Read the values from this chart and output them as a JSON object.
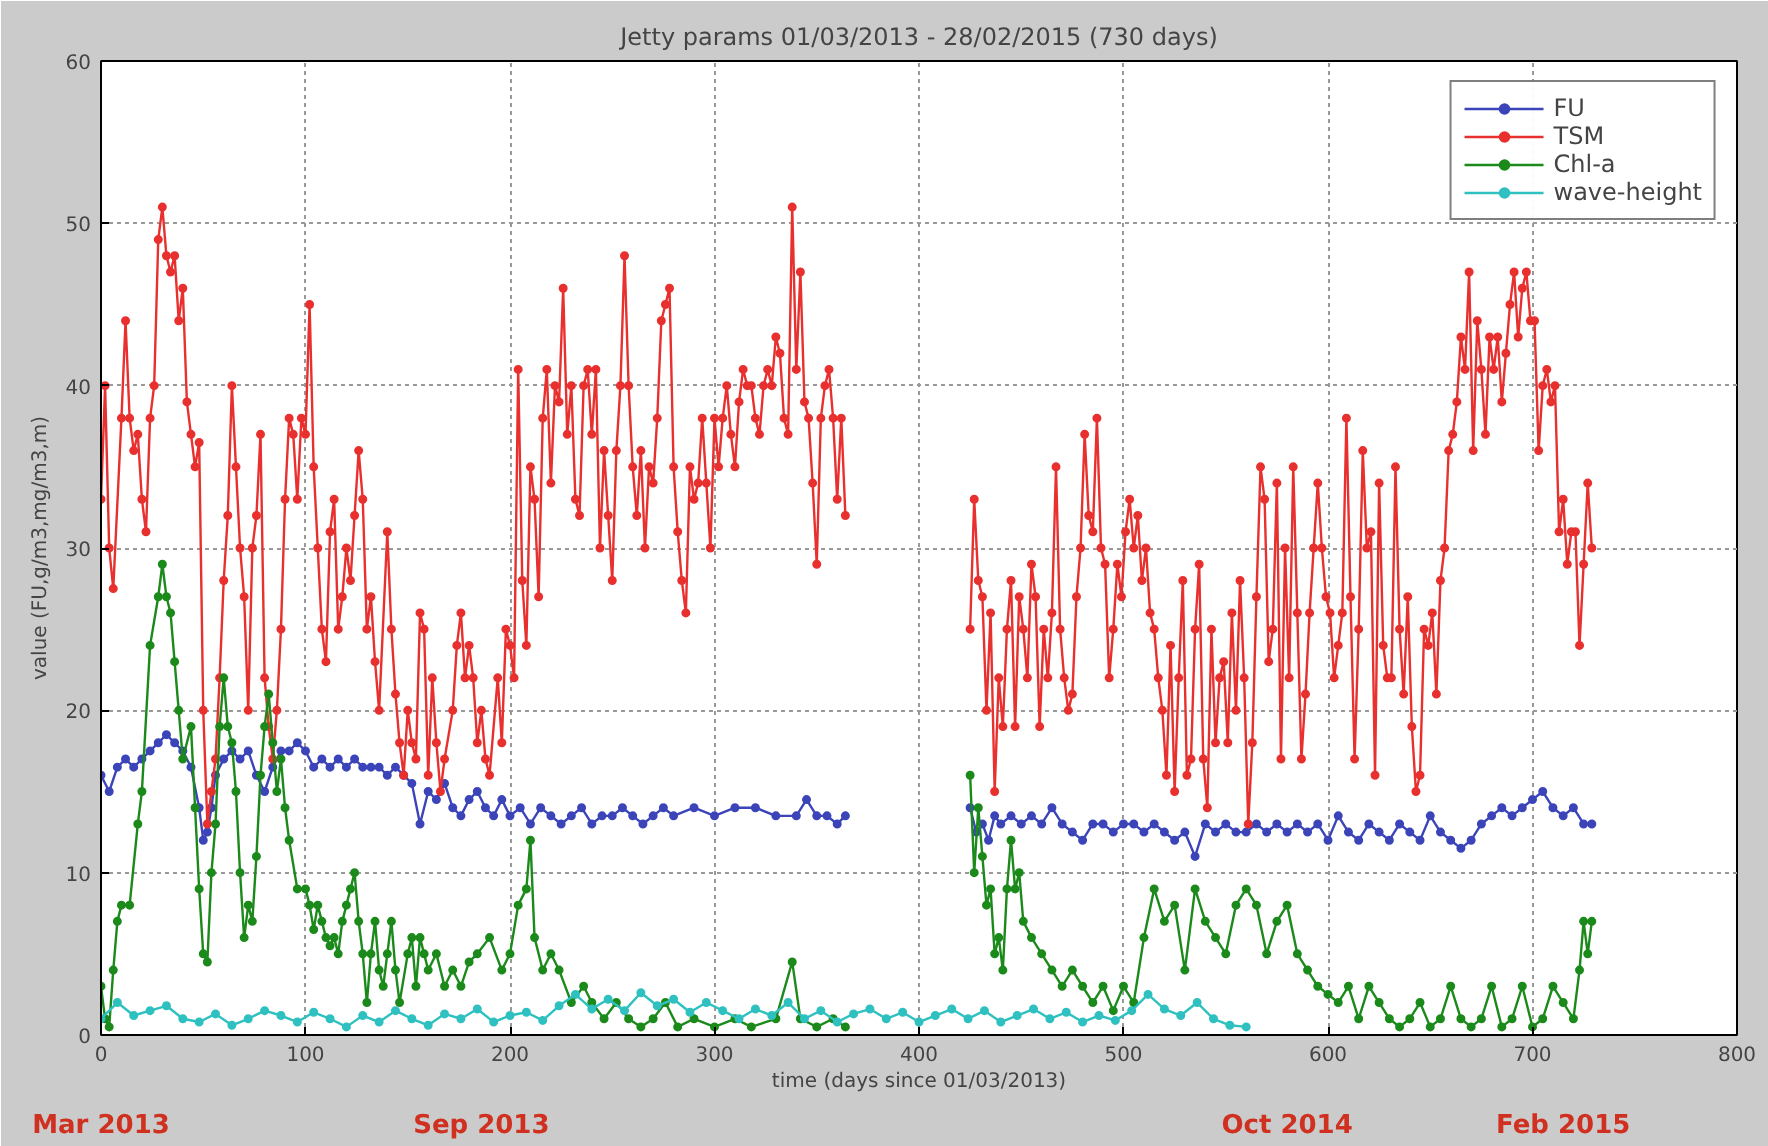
{
  "chart_data": {
    "type": "line",
    "title": "Jetty params 01/03/2013 - 28/02/2015 (730 days)",
    "xlabel": "time (days since 01/03/2013)",
    "ylabel": "value (FU,g/m3,mg/m3,m)",
    "xlim": [
      0,
      800
    ],
    "ylim": [
      0,
      60
    ],
    "xticks": [
      0,
      100,
      200,
      300,
      400,
      500,
      600,
      700,
      800
    ],
    "yticks": [
      0,
      10,
      20,
      30,
      40,
      50,
      60
    ],
    "grid": true,
    "legend": "top right",
    "marker": "circle",
    "line_style": "solid",
    "x2lim": [
      "2013-03-01",
      "2015-05-10"
    ],
    "x2ticks": [
      {
        "value": "2013-03-01",
        "label": "Mar 2013"
      },
      {
        "value": "2013-09-03",
        "label": "Sep 2013"
      },
      {
        "value": "2014-10-02",
        "label": "Oct 2014"
      },
      {
        "value": "2015-02-14",
        "label": "Feb 2015"
      }
    ],
    "series": [
      {
        "name": "FU",
        "color": "#3b44b8",
        "x": [
          0,
          4,
          8,
          12,
          16,
          20,
          24,
          28,
          32,
          36,
          40,
          44,
          48,
          50,
          52,
          54,
          56,
          60,
          64,
          68,
          72,
          76,
          80,
          84,
          88,
          92,
          96,
          100,
          104,
          108,
          112,
          116,
          120,
          124,
          128,
          132,
          136,
          140,
          144,
          148,
          152,
          156,
          160,
          164,
          168,
          172,
          176,
          180,
          184,
          188,
          192,
          196,
          200,
          205,
          210,
          215,
          220,
          225,
          230,
          235,
          240,
          245,
          250,
          255,
          260,
          265,
          270,
          275,
          280,
          290,
          300,
          310,
          320,
          330,
          340,
          345,
          350,
          355,
          360,
          364,
          395,
          425,
          428,
          431,
          434,
          437,
          440,
          445,
          450,
          455,
          460,
          465,
          470,
          475,
          480,
          485,
          490,
          495,
          500,
          505,
          510,
          515,
          520,
          525,
          530,
          535,
          540,
          545,
          550,
          555,
          560,
          565,
          570,
          575,
          580,
          585,
          590,
          595,
          600,
          605,
          610,
          615,
          620,
          625,
          630,
          635,
          640,
          645,
          650,
          655,
          660,
          665,
          670,
          675,
          680,
          685,
          690,
          695,
          700,
          705,
          710,
          715,
          720,
          725,
          729
        ],
        "values": [
          16,
          15,
          16.5,
          17,
          16.5,
          17,
          17.5,
          18,
          18.5,
          18,
          17.5,
          16.5,
          14,
          12,
          12.5,
          14,
          16,
          17,
          17.5,
          17,
          17.5,
          16,
          15,
          16.5,
          17.5,
          17.5,
          18,
          17.5,
          16.5,
          17,
          16.5,
          17,
          16.5,
          17,
          16.5,
          16.5,
          16.5,
          16,
          16.5,
          16,
          15.5,
          13,
          15,
          14.5,
          15.5,
          14,
          13.5,
          14.5,
          15,
          14,
          13.5,
          14.5,
          13.5,
          14,
          13,
          14,
          13.5,
          13,
          13.5,
          14,
          13,
          13.5,
          13.5,
          14,
          13.5,
          13,
          13.5,
          14,
          13.5,
          14,
          13.5,
          14,
          14,
          13.5,
          13.5,
          14.5,
          13.5,
          13.5,
          13,
          13.5,
          null,
          14,
          12.5,
          13,
          12,
          13.5,
          13,
          13.5,
          13,
          13.5,
          13,
          14,
          13,
          12.5,
          12,
          13,
          13,
          12.5,
          13,
          13,
          12.5,
          13,
          12.5,
          12,
          12.5,
          11,
          13,
          12.5,
          13,
          12.5,
          12.5,
          13,
          12.5,
          13,
          12.5,
          13,
          12.5,
          13,
          12,
          13.5,
          12.5,
          12,
          13,
          12.5,
          12,
          13,
          12.5,
          12,
          13.5,
          12.5,
          12,
          11.5,
          12,
          13,
          13.5,
          14,
          13.5,
          14,
          14.5,
          15,
          14,
          13.5,
          14,
          13,
          13
        ]
      },
      {
        "name": "TSM",
        "color": "#e8302e",
        "x": [
          0,
          2,
          4,
          6,
          10,
          12,
          14,
          16,
          18,
          20,
          22,
          24,
          26,
          28,
          30,
          32,
          34,
          36,
          38,
          40,
          42,
          44,
          46,
          48,
          50,
          52,
          54,
          56,
          58,
          60,
          62,
          64,
          66,
          68,
          70,
          72,
          74,
          76,
          78,
          80,
          82,
          84,
          86,
          88,
          90,
          92,
          94,
          96,
          98,
          100,
          102,
          104,
          106,
          108,
          110,
          112,
          114,
          116,
          118,
          120,
          122,
          124,
          126,
          128,
          130,
          132,
          134,
          136,
          140,
          142,
          144,
          146,
          148,
          150,
          152,
          154,
          156,
          158,
          160,
          162,
          164,
          166,
          168,
          172,
          174,
          176,
          178,
          180,
          182,
          184,
          186,
          188,
          190,
          194,
          196,
          198,
          200,
          202,
          204,
          206,
          208,
          210,
          212,
          214,
          216,
          218,
          220,
          222,
          224,
          226,
          228,
          230,
          232,
          234,
          236,
          238,
          240,
          242,
          244,
          246,
          248,
          250,
          252,
          254,
          256,
          258,
          260,
          262,
          264,
          266,
          268,
          270,
          272,
          274,
          276,
          278,
          280,
          282,
          284,
          286,
          288,
          290,
          292,
          294,
          296,
          298,
          300,
          302,
          304,
          306,
          308,
          310,
          312,
          314,
          316,
          318,
          320,
          322,
          324,
          326,
          328,
          330,
          332,
          334,
          336,
          338,
          340,
          342,
          344,
          346,
          348,
          350,
          352,
          354,
          356,
          358,
          360,
          362,
          364,
          395,
          425,
          427,
          429,
          431,
          433,
          435,
          437,
          439,
          441,
          443,
          445,
          447,
          449,
          451,
          453,
          455,
          457,
          459,
          461,
          463,
          465,
          467,
          469,
          471,
          473,
          475,
          477,
          479,
          481,
          483,
          485,
          487,
          489,
          491,
          493,
          495,
          497,
          499,
          501,
          503,
          505,
          507,
          509,
          511,
          513,
          515,
          517,
          519,
          521,
          523,
          525,
          527,
          529,
          531,
          533,
          535,
          537,
          539,
          541,
          543,
          545,
          547,
          549,
          551,
          553,
          555,
          557,
          559,
          561,
          563,
          565,
          567,
          569,
          571,
          573,
          575,
          577,
          579,
          581,
          583,
          585,
          587,
          589,
          591,
          593,
          595,
          597,
          599,
          601,
          603,
          605,
          607,
          609,
          611,
          613,
          615,
          617,
          619,
          621,
          623,
          625,
          627,
          629,
          631,
          633,
          635,
          637,
          639,
          641,
          643,
          645,
          647,
          649,
          651,
          653,
          655,
          657,
          659,
          661,
          663,
          665,
          667,
          669,
          671,
          673,
          675,
          677,
          679,
          681,
          683,
          685,
          687,
          689,
          691,
          693,
          695,
          697,
          699,
          701,
          703,
          705,
          707,
          709,
          711,
          713,
          715,
          717,
          719,
          721,
          723,
          725,
          727,
          729
        ],
        "values": [
          33,
          40,
          30,
          27.5,
          38,
          44,
          38,
          36,
          37,
          33,
          31,
          38,
          40,
          49,
          51,
          48,
          47,
          48,
          44,
          46,
          39,
          37,
          35,
          36.5,
          20,
          13,
          15,
          17,
          22,
          28,
          32,
          40,
          35,
          30,
          27,
          20,
          30,
          32,
          37,
          22,
          19,
          17,
          20,
          25,
          33,
          38,
          37,
          33,
          38,
          37,
          45,
          35,
          30,
          25,
          23,
          31,
          33,
          25,
          27,
          30,
          28,
          32,
          36,
          33,
          25,
          27,
          23,
          20,
          31,
          25,
          21,
          18,
          16,
          20,
          18,
          17,
          26,
          25,
          16,
          22,
          18,
          15,
          17,
          20,
          24,
          26,
          22,
          24,
          22,
          18,
          20,
          17,
          16,
          22,
          18,
          25,
          24,
          22,
          41,
          28,
          24,
          35,
          33,
          27,
          38,
          41,
          34,
          40,
          39,
          46,
          37,
          40,
          33,
          32,
          40,
          41,
          37,
          41,
          30,
          36,
          32,
          28,
          36,
          40,
          48,
          40,
          35,
          32,
          36,
          30,
          35,
          34,
          38,
          44,
          45,
          46,
          35,
          31,
          28,
          26,
          35,
          33,
          34,
          38,
          34,
          30,
          38,
          35,
          38,
          40,
          37,
          35,
          39,
          41,
          40,
          40,
          38,
          37,
          40,
          41,
          40,
          43,
          42,
          38,
          37,
          51,
          41,
          47,
          39,
          38,
          34,
          29,
          38,
          40,
          41,
          38,
          33,
          38,
          32,
          null,
          25,
          33,
          28,
          27,
          20,
          26,
          15,
          22,
          19,
          25,
          28,
          19,
          27,
          25,
          22,
          29,
          27,
          19,
          25,
          22,
          26,
          35,
          25,
          22,
          20,
          21,
          27,
          30,
          37,
          32,
          31,
          38,
          30,
          29,
          22,
          25,
          29,
          27,
          31,
          33,
          30,
          32,
          28,
          30,
          26,
          25,
          22,
          20,
          16,
          24,
          15,
          22,
          28,
          16,
          17,
          25,
          29,
          17,
          14,
          25,
          18,
          22,
          23,
          18,
          26,
          20,
          28,
          22,
          13,
          18,
          27,
          35,
          33,
          23,
          25,
          34,
          17,
          30,
          22,
          35,
          26,
          17,
          21,
          26,
          30,
          34,
          30,
          27,
          26,
          22,
          24,
          26,
          38,
          27,
          17,
          25,
          36,
          30,
          31,
          16,
          34,
          24,
          22,
          22,
          35,
          25,
          21,
          27,
          19,
          15,
          16,
          25,
          24,
          26,
          21,
          28,
          30,
          36,
          37,
          39,
          43,
          41,
          47,
          36,
          44,
          41,
          37,
          43,
          41,
          43,
          39,
          42,
          45,
          47,
          43,
          46,
          47,
          44,
          44,
          36,
          40,
          41,
          39,
          40,
          31,
          33,
          29,
          31,
          31,
          24,
          29,
          34,
          30
        ]
      },
      {
        "name": "Chl-a",
        "color": "#1b8a1b",
        "x": [
          0,
          2,
          4,
          6,
          8,
          10,
          14,
          18,
          20,
          24,
          28,
          30,
          32,
          34,
          36,
          38,
          40,
          44,
          46,
          48,
          50,
          52,
          54,
          56,
          58,
          60,
          62,
          64,
          66,
          68,
          70,
          72,
          74,
          76,
          78,
          80,
          82,
          84,
          86,
          88,
          90,
          92,
          96,
          100,
          102,
          104,
          106,
          108,
          110,
          112,
          114,
          116,
          118,
          120,
          122,
          124,
          126,
          128,
          130,
          132,
          134,
          136,
          138,
          140,
          142,
          144,
          146,
          150,
          152,
          154,
          156,
          158,
          160,
          164,
          168,
          172,
          176,
          180,
          184,
          190,
          196,
          200,
          204,
          208,
          210,
          212,
          216,
          220,
          224,
          230,
          236,
          240,
          246,
          252,
          258,
          264,
          270,
          276,
          282,
          290,
          300,
          310,
          318,
          330,
          338,
          342,
          350,
          358,
          364,
          395,
          425,
          427,
          429,
          431,
          433,
          435,
          437,
          439,
          441,
          443,
          445,
          447,
          449,
          451,
          455,
          460,
          465,
          470,
          475,
          480,
          485,
          490,
          495,
          500,
          505,
          510,
          515,
          520,
          525,
          530,
          535,
          540,
          545,
          550,
          555,
          560,
          565,
          570,
          575,
          580,
          585,
          590,
          595,
          600,
          605,
          610,
          615,
          620,
          625,
          630,
          635,
          640,
          645,
          650,
          655,
          660,
          665,
          670,
          675,
          680,
          685,
          690,
          695,
          700,
          705,
          710,
          715,
          720,
          723,
          725,
          727,
          729
        ],
        "values": [
          3,
          1,
          0.5,
          4,
          7,
          8,
          8,
          13,
          15,
          24,
          27,
          29,
          27,
          26,
          23,
          20,
          17,
          19,
          14,
          9,
          5,
          4.5,
          10,
          13,
          19,
          22,
          19,
          18,
          15,
          10,
          6,
          8,
          7,
          11,
          16,
          19,
          21,
          18,
          15,
          17,
          14,
          12,
          9,
          9,
          8,
          6.5,
          8,
          7,
          6,
          5.5,
          6,
          5,
          7,
          8,
          9,
          10,
          7,
          5,
          2,
          5,
          7,
          4,
          3,
          5,
          7,
          4,
          2,
          5,
          6,
          3,
          6,
          5,
          4,
          5,
          3,
          4,
          3,
          4.5,
          5,
          6,
          4,
          5,
          8,
          9,
          12,
          6,
          4,
          5,
          4,
          2,
          3,
          2,
          1,
          2,
          1,
          0.5,
          1,
          2,
          0.5,
          1,
          0.5,
          1,
          0.5,
          1,
          4.5,
          1,
          0.5,
          1,
          0.5,
          null,
          16,
          10,
          14,
          11,
          8,
          9,
          5,
          6,
          4,
          9,
          12,
          9,
          10,
          7,
          6,
          5,
          4,
          3,
          4,
          3,
          2,
          3,
          1.5,
          3,
          2,
          6,
          9,
          7,
          8,
          4,
          9,
          7,
          6,
          5,
          8,
          9,
          8,
          5,
          7,
          8,
          5,
          4,
          3,
          2.5,
          2,
          3,
          1,
          3,
          2,
          1,
          0.5,
          1,
          2,
          0.5,
          1,
          3,
          1,
          0.5,
          1,
          3,
          0.5,
          1,
          3,
          0.5,
          1,
          3,
          2,
          1,
          4,
          7,
          5,
          7
        ]
      },
      {
        "name": "wave-height",
        "color": "#2fc0c0",
        "x": [
          0,
          8,
          16,
          24,
          32,
          40,
          48,
          56,
          64,
          72,
          80,
          88,
          96,
          104,
          112,
          120,
          128,
          136,
          144,
          152,
          160,
          168,
          176,
          184,
          192,
          200,
          208,
          216,
          224,
          232,
          240,
          248,
          256,
          264,
          272,
          280,
          288,
          296,
          304,
          312,
          320,
          328,
          336,
          344,
          352,
          360,
          368,
          376,
          384,
          392,
          400,
          408,
          416,
          424,
          432,
          440,
          448,
          456,
          464,
          472,
          480,
          488,
          496,
          504,
          512,
          520,
          528,
          536,
          544,
          552,
          560
        ],
        "values": [
          1,
          2,
          1.2,
          1.5,
          1.8,
          1,
          0.8,
          1.3,
          0.6,
          1,
          1.5,
          1.2,
          0.8,
          1.4,
          1,
          0.5,
          1.2,
          0.8,
          1.5,
          1,
          0.6,
          1.3,
          1,
          1.6,
          0.8,
          1.2,
          1.4,
          0.9,
          1.8,
          2.5,
          1.6,
          2.2,
          1.5,
          2.6,
          1.8,
          2.2,
          1.4,
          2,
          1.5,
          1,
          1.6,
          1.2,
          2,
          1,
          1.5,
          0.8,
          1.3,
          1.6,
          1,
          1.4,
          0.8,
          1.2,
          1.6,
          1,
          1.5,
          0.8,
          1.2,
          1.6,
          1,
          1.4,
          0.8,
          1.2,
          0.9,
          1.5,
          2.5,
          1.6,
          1.2,
          2,
          1,
          0.6,
          0.5
        ]
      }
    ]
  }
}
